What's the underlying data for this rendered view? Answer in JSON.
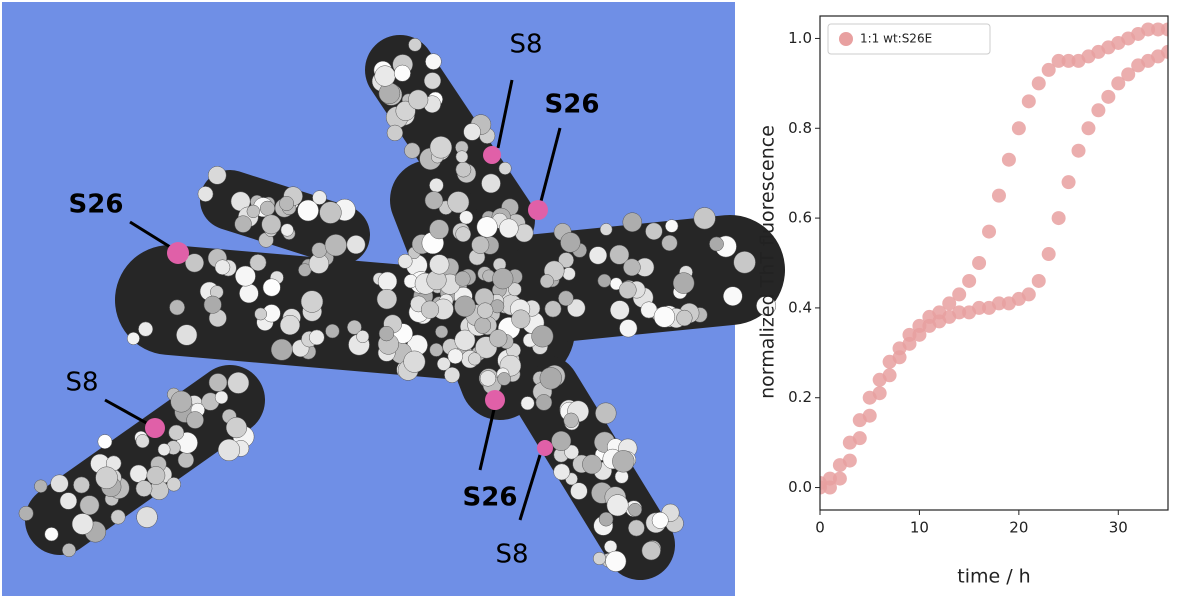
{
  "labels": [
    "S8",
    "S26",
    "S26",
    "S8",
    "S26",
    "S8"
  ],
  "chart_data": {
    "type": "scatter",
    "xlabel": "time / h",
    "ylabel": "normalized ThT fluorescence",
    "xlim": [
      0,
      35
    ],
    "xticks": [
      0,
      10,
      20,
      30
    ],
    "ylim": [
      -0.05,
      1.05
    ],
    "yticks": [
      {
        "value": 0,
        "label": "0.0"
      },
      0.2,
      0.4,
      0.6,
      0.8,
      {
        "value": 1,
        "label": "1.0"
      }
    ],
    "legend": "upper left",
    "series": [
      {
        "name": "1:1 wt:S26E",
        "color": "#e8a0a0",
        "x": [
          0,
          1,
          2,
          3,
          4,
          5,
          6,
          7,
          8,
          9,
          10,
          11,
          12,
          13,
          14,
          15,
          16,
          17,
          18,
          19,
          20,
          21,
          22,
          23,
          24,
          25,
          26,
          27,
          28,
          29,
          30,
          31,
          32,
          33,
          34,
          35,
          0,
          1,
          2,
          3,
          4,
          5,
          6,
          7,
          8,
          9,
          10,
          11,
          12,
          13,
          14,
          15,
          16,
          17,
          18,
          19,
          20,
          21,
          22,
          23,
          24,
          25,
          26,
          27,
          28,
          29,
          30,
          31,
          32,
          33,
          34,
          35
        ],
        "values": [
          0.0,
          0.0,
          0.02,
          0.06,
          0.11,
          0.16,
          0.21,
          0.25,
          0.29,
          0.32,
          0.34,
          0.36,
          0.37,
          0.38,
          0.39,
          0.39,
          0.4,
          0.4,
          0.41,
          0.41,
          0.42,
          0.43,
          0.46,
          0.52,
          0.6,
          0.68,
          0.75,
          0.8,
          0.84,
          0.87,
          0.9,
          0.92,
          0.94,
          0.95,
          0.96,
          0.97,
          0.01,
          0.02,
          0.05,
          0.1,
          0.15,
          0.2,
          0.24,
          0.28,
          0.31,
          0.34,
          0.36,
          0.38,
          0.39,
          0.41,
          0.43,
          0.46,
          0.5,
          0.57,
          0.65,
          0.73,
          0.8,
          0.86,
          0.9,
          0.93,
          0.95,
          0.95,
          0.95,
          0.96,
          0.97,
          0.98,
          0.99,
          1.0,
          1.01,
          1.02,
          1.02,
          1.02
        ]
      }
    ]
  }
}
